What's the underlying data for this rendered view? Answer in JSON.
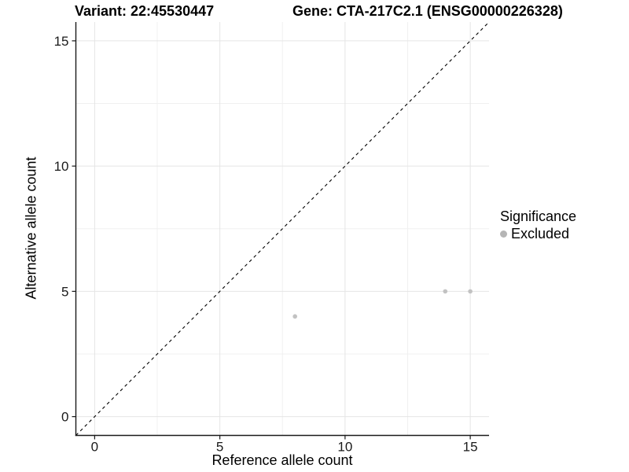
{
  "titles": {
    "variant": "Variant: 22:45530447",
    "gene": "Gene: CTA-217C2.1 (ENSG00000226328)"
  },
  "chart_data": {
    "type": "scatter",
    "title_left": "Variant: 22:45530447",
    "title_right": "Gene: CTA-217C2.1 (ENSG00000226328)",
    "xlabel": "Reference allele count",
    "ylabel": "Alternative allele count",
    "xlim": [
      -0.75,
      15.75
    ],
    "ylim": [
      -0.75,
      15.75
    ],
    "xticks": [
      0,
      5,
      10,
      15
    ],
    "yticks": [
      0,
      5,
      10,
      15
    ],
    "minor_ticks": [
      2.5,
      7.5,
      12.5
    ],
    "grid": "major+minor",
    "series": [
      {
        "name": "Excluded",
        "points": [
          [
            8,
            4
          ],
          [
            14,
            5
          ],
          [
            15,
            5
          ]
        ],
        "color": "#c2c2c2"
      }
    ],
    "identity_line": {
      "style": "dashed",
      "from": [
        -0.75,
        -0.75
      ],
      "to": [
        15.75,
        15.75
      ],
      "color": "#000000"
    },
    "legend": {
      "title": "Significance",
      "position": "right",
      "items": [
        {
          "label": "Excluded",
          "color": "#b5b5b5"
        }
      ]
    },
    "colors": {
      "background": "#ffffff",
      "grid_major": "#e5e5e5",
      "grid_minor": "#f0f0f0",
      "axis": "#1a1a1a",
      "tick_text": "#1a1a1a",
      "point": "#c2c2c2"
    }
  }
}
